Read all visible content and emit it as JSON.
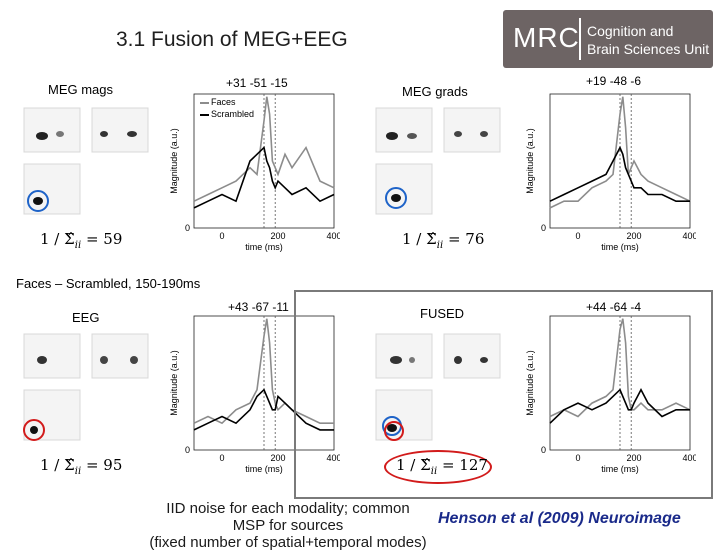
{
  "title": "3.1 Fusion of MEG+EEG",
  "logo": {
    "mark": "MRC",
    "line1": "Cognition and",
    "line2": "Brain Sciences Unit"
  },
  "panels": {
    "mags": {
      "label": "MEG mags",
      "coord": "+31 -51 -15",
      "formula": "1 / Σ̂",
      "sub": "ii",
      "value": "= 59"
    },
    "grads": {
      "label": "MEG grads",
      "coord": "+19 -48 -6",
      "formula": "1 / Σ̂",
      "sub": "ii",
      "value": "= 76"
    },
    "eeg": {
      "label": "EEG",
      "coord": "+43 -67 -11",
      "formula": "1 / Σ̂",
      "sub": "ii",
      "value": "= 95"
    },
    "fused": {
      "label": "FUSED",
      "coord": "+44 -64 -4",
      "formula": "1 / Σ̂",
      "sub": "ii",
      "value": "= 127"
    }
  },
  "legend": {
    "faces": "Faces",
    "scrambled": "Scrambled"
  },
  "axis": {
    "ylabel": "Magnitude (a.u.)",
    "xlabel": "time (ms)",
    "ticks": [
      "0",
      "200",
      "400"
    ],
    "y0": "0"
  },
  "mid_text": "Faces – Scrambled, 150-190ms",
  "footer_left_1": "IID noise for each modality; common MSP for sources",
  "footer_left_2": "(fixed number of spatial+temporal modes)",
  "footer_right": "Henson et al (2009) Neuroimage",
  "colors": {
    "faces": "#8c8c8c",
    "scrambled": "#000000",
    "circle_blue": "#1e63c8",
    "circle_red": "#d21b1b",
    "logo_bg": "#6d6464"
  },
  "chart_data": [
    {
      "type": "line",
      "panel": "MEG mags",
      "x": [
        -100,
        -50,
        0,
        50,
        100,
        125,
        150,
        160,
        170,
        180,
        190,
        200,
        225,
        250,
        300,
        350,
        400
      ],
      "series": [
        {
          "name": "Faces",
          "values": [
            0.2,
            0.25,
            0.3,
            0.35,
            0.45,
            0.4,
            0.8,
            0.98,
            0.85,
            0.5,
            0.45,
            0.4,
            0.55,
            0.45,
            0.6,
            0.35,
            0.3
          ]
        },
        {
          "name": "Scrambled",
          "values": [
            0.15,
            0.2,
            0.25,
            0.2,
            0.5,
            0.55,
            0.6,
            0.5,
            0.45,
            0.35,
            0.3,
            0.35,
            0.3,
            0.25,
            0.3,
            0.2,
            0.25
          ]
        }
      ],
      "xlabel": "time (ms)",
      "ylabel": "Magnitude (a.u.)",
      "xlim": [
        -100,
        400
      ],
      "ylim": [
        0,
        1
      ]
    },
    {
      "type": "line",
      "panel": "MEG grads",
      "x": [
        -100,
        -50,
        0,
        50,
        100,
        125,
        150,
        160,
        170,
        180,
        190,
        200,
        225,
        250,
        300,
        350,
        400
      ],
      "series": [
        {
          "name": "Faces",
          "values": [
            0.15,
            0.2,
            0.2,
            0.3,
            0.35,
            0.4,
            0.85,
            0.98,
            0.75,
            0.4,
            0.45,
            0.5,
            0.4,
            0.35,
            0.3,
            0.25,
            0.2
          ]
        },
        {
          "name": "Scrambled",
          "values": [
            0.2,
            0.25,
            0.3,
            0.35,
            0.4,
            0.5,
            0.6,
            0.55,
            0.45,
            0.4,
            0.35,
            0.3,
            0.3,
            0.25,
            0.25,
            0.2,
            0.2
          ]
        }
      ],
      "xlabel": "time (ms)",
      "ylabel": "Magnitude (a.u.)",
      "xlim": [
        -100,
        400
      ],
      "ylim": [
        0,
        1
      ]
    },
    {
      "type": "line",
      "panel": "EEG",
      "x": [
        -100,
        -50,
        0,
        50,
        100,
        125,
        150,
        160,
        170,
        180,
        190,
        200,
        225,
        250,
        300,
        350,
        400
      ],
      "series": [
        {
          "name": "Faces",
          "values": [
            0.2,
            0.25,
            0.2,
            0.3,
            0.35,
            0.45,
            0.85,
            0.98,
            0.8,
            0.45,
            0.35,
            0.3,
            0.35,
            0.3,
            0.25,
            0.2,
            0.2
          ]
        },
        {
          "name": "Scrambled",
          "values": [
            0.15,
            0.2,
            0.25,
            0.2,
            0.3,
            0.4,
            0.45,
            0.4,
            0.35,
            0.3,
            0.3,
            0.4,
            0.35,
            0.3,
            0.2,
            0.15,
            0.15
          ]
        }
      ],
      "xlabel": "time (ms)",
      "ylabel": "Magnitude (a.u.)",
      "xlim": [
        -100,
        400
      ],
      "ylim": [
        0,
        1
      ]
    },
    {
      "type": "line",
      "panel": "FUSED",
      "x": [
        -100,
        -50,
        0,
        50,
        100,
        125,
        150,
        160,
        170,
        180,
        190,
        200,
        225,
        250,
        300,
        350,
        400
      ],
      "series": [
        {
          "name": "Faces",
          "values": [
            0.25,
            0.3,
            0.25,
            0.35,
            0.4,
            0.45,
            0.9,
            0.98,
            0.8,
            0.4,
            0.3,
            0.3,
            0.35,
            0.3,
            0.3,
            0.35,
            0.3
          ]
        },
        {
          "name": "Scrambled",
          "values": [
            0.2,
            0.3,
            0.35,
            0.3,
            0.35,
            0.4,
            0.45,
            0.4,
            0.35,
            0.3,
            0.3,
            0.35,
            0.45,
            0.35,
            0.25,
            0.3,
            0.3
          ]
        }
      ],
      "xlabel": "time (ms)",
      "ylabel": "Magnitude (a.u.)",
      "xlim": [
        -100,
        400
      ],
      "ylim": [
        0,
        1
      ]
    }
  ]
}
